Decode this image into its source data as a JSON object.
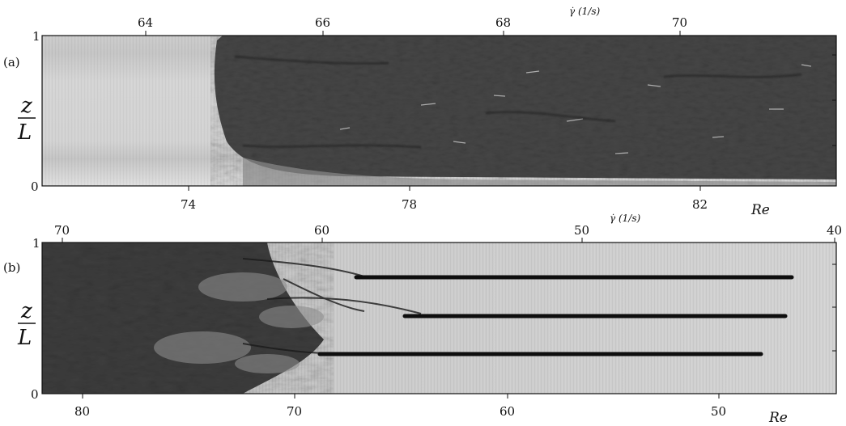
{
  "figure": {
    "panels": [
      {
        "label": "(a)",
        "z_axis": {
          "numerator": "z",
          "denominator": "L",
          "ticks": [
            "1",
            "0"
          ]
        },
        "top_axis": {
          "label": "γ̇ (1/s)",
          "ticks": [
            "64",
            "66",
            "68",
            "70"
          ]
        },
        "bottom_axis": {
          "label": "Re",
          "ticks": [
            "74",
            "78",
            "82"
          ]
        }
      },
      {
        "label": "(b)",
        "z_axis": {
          "numerator": "z",
          "denominator": "L",
          "ticks": [
            "1",
            "0"
          ]
        },
        "top_axis": {
          "label": "γ̇ (1/s)",
          "ticks": [
            "70",
            "60",
            "50",
            "40"
          ]
        },
        "bottom_axis": {
          "label": "Re",
          "ticks": [
            "80",
            "70",
            "60",
            "50"
          ]
        }
      }
    ]
  }
}
